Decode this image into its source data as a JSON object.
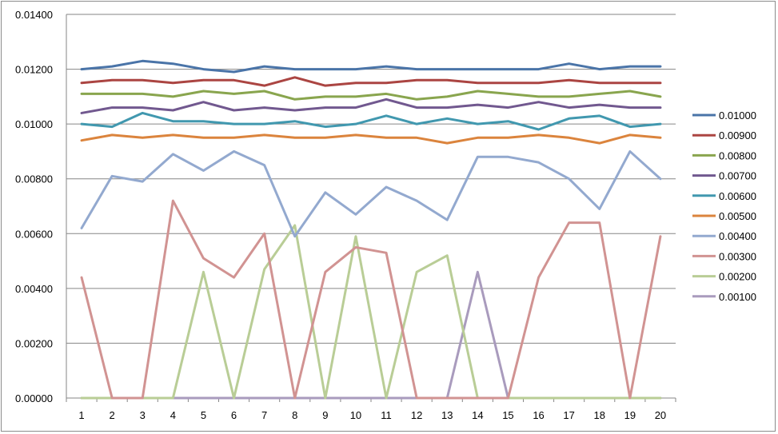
{
  "chart_data": {
    "type": "line",
    "title": "",
    "xlabel": "",
    "ylabel": "",
    "x": [
      1,
      2,
      3,
      4,
      5,
      6,
      7,
      8,
      9,
      10,
      11,
      12,
      13,
      14,
      15,
      16,
      17,
      18,
      19,
      20
    ],
    "x_tick_labels": [
      "1",
      "2",
      "3",
      "4",
      "5",
      "6",
      "7",
      "8",
      "9",
      "10",
      "11",
      "12",
      "13",
      "14",
      "15",
      "16",
      "17",
      "18",
      "19",
      "20"
    ],
    "ylim": [
      0,
      0.014
    ],
    "y_ticks": [
      0,
      0.002,
      0.004,
      0.006,
      0.008,
      0.01,
      0.012,
      0.014
    ],
    "y_tick_labels": [
      "0.00000",
      "0.00200",
      "0.00400",
      "0.00600",
      "0.00800",
      "0.01000",
      "0.01200",
      "0.01400"
    ],
    "grid": "horizontal",
    "legend_position": "right",
    "series": [
      {
        "name": "0.01000",
        "color": "#4a74a8",
        "values": [
          0.012,
          0.0121,
          0.0123,
          0.0122,
          0.012,
          0.0119,
          0.0121,
          0.012,
          0.012,
          0.012,
          0.0121,
          0.012,
          0.012,
          0.012,
          0.012,
          0.012,
          0.0122,
          0.012,
          0.0121,
          0.0121
        ]
      },
      {
        "name": "0.00900",
        "color": "#ab4542",
        "values": [
          0.0115,
          0.0116,
          0.0116,
          0.0115,
          0.0116,
          0.0116,
          0.0114,
          0.0117,
          0.0114,
          0.0115,
          0.0115,
          0.0116,
          0.0116,
          0.0115,
          0.0115,
          0.0115,
          0.0116,
          0.0115,
          0.0115,
          0.0115
        ]
      },
      {
        "name": "0.00800",
        "color": "#89a54e",
        "values": [
          0.0111,
          0.0111,
          0.0111,
          0.011,
          0.0112,
          0.0111,
          0.0112,
          0.0109,
          0.011,
          0.011,
          0.0111,
          0.0109,
          0.011,
          0.0112,
          0.0111,
          0.011,
          0.011,
          0.0111,
          0.0112,
          0.011
        ]
      },
      {
        "name": "0.00700",
        "color": "#71588f",
        "values": [
          0.0104,
          0.0106,
          0.0106,
          0.0105,
          0.0108,
          0.0105,
          0.0106,
          0.0105,
          0.0106,
          0.0106,
          0.0109,
          0.0106,
          0.0106,
          0.0107,
          0.0106,
          0.0108,
          0.0106,
          0.0107,
          0.0106,
          0.0106
        ]
      },
      {
        "name": "0.00600",
        "color": "#4198af",
        "values": [
          0.01,
          0.0099,
          0.0104,
          0.0101,
          0.0101,
          0.01,
          0.01,
          0.0101,
          0.0099,
          0.01,
          0.0103,
          0.01,
          0.0102,
          0.01,
          0.0101,
          0.0098,
          0.0102,
          0.0103,
          0.0099,
          0.01
        ]
      },
      {
        "name": "0.00500",
        "color": "#db843d",
        "values": [
          0.0094,
          0.0096,
          0.0095,
          0.0096,
          0.0095,
          0.0095,
          0.0096,
          0.0095,
          0.0095,
          0.0096,
          0.0095,
          0.0095,
          0.0093,
          0.0095,
          0.0095,
          0.0096,
          0.0095,
          0.0093,
          0.0096,
          0.0095
        ]
      },
      {
        "name": "0.00400",
        "color": "#93a9cf",
        "values": [
          0.0062,
          0.0081,
          0.0079,
          0.0089,
          0.0083,
          0.009,
          0.0085,
          0.0059,
          0.0075,
          0.0067,
          0.0077,
          0.0072,
          0.0065,
          0.0088,
          0.0088,
          0.0086,
          0.008,
          0.0069,
          0.009,
          0.008
        ]
      },
      {
        "name": "0.00300",
        "color": "#d19392",
        "values": [
          0.0044,
          0.0,
          0.0,
          0.0072,
          0.0051,
          0.0044,
          0.006,
          0.0,
          0.0046,
          0.0055,
          0.0053,
          0.0,
          0.0,
          0.0,
          0.0,
          0.0044,
          0.0064,
          0.0064,
          0.0,
          0.0059
        ]
      },
      {
        "name": "0.00200",
        "color": "#b9cd96",
        "values": [
          0.0,
          0.0,
          0.0,
          0.0,
          0.0046,
          0.0,
          0.0047,
          0.0063,
          0.0,
          0.0059,
          0.0,
          0.0046,
          0.0052,
          0.0,
          0.0,
          0.0,
          0.0,
          0.0,
          0.0,
          0.0
        ]
      },
      {
        "name": "0.00100",
        "color": "#a99bbd",
        "values": [
          0.0,
          0.0,
          0.0,
          0.0,
          0.0,
          0.0,
          0.0,
          0.0,
          0.0,
          0.0,
          0.0,
          0.0,
          0.0,
          0.0046,
          0.0,
          0.0,
          0.0,
          0.0,
          0.0,
          0.0
        ]
      }
    ]
  }
}
